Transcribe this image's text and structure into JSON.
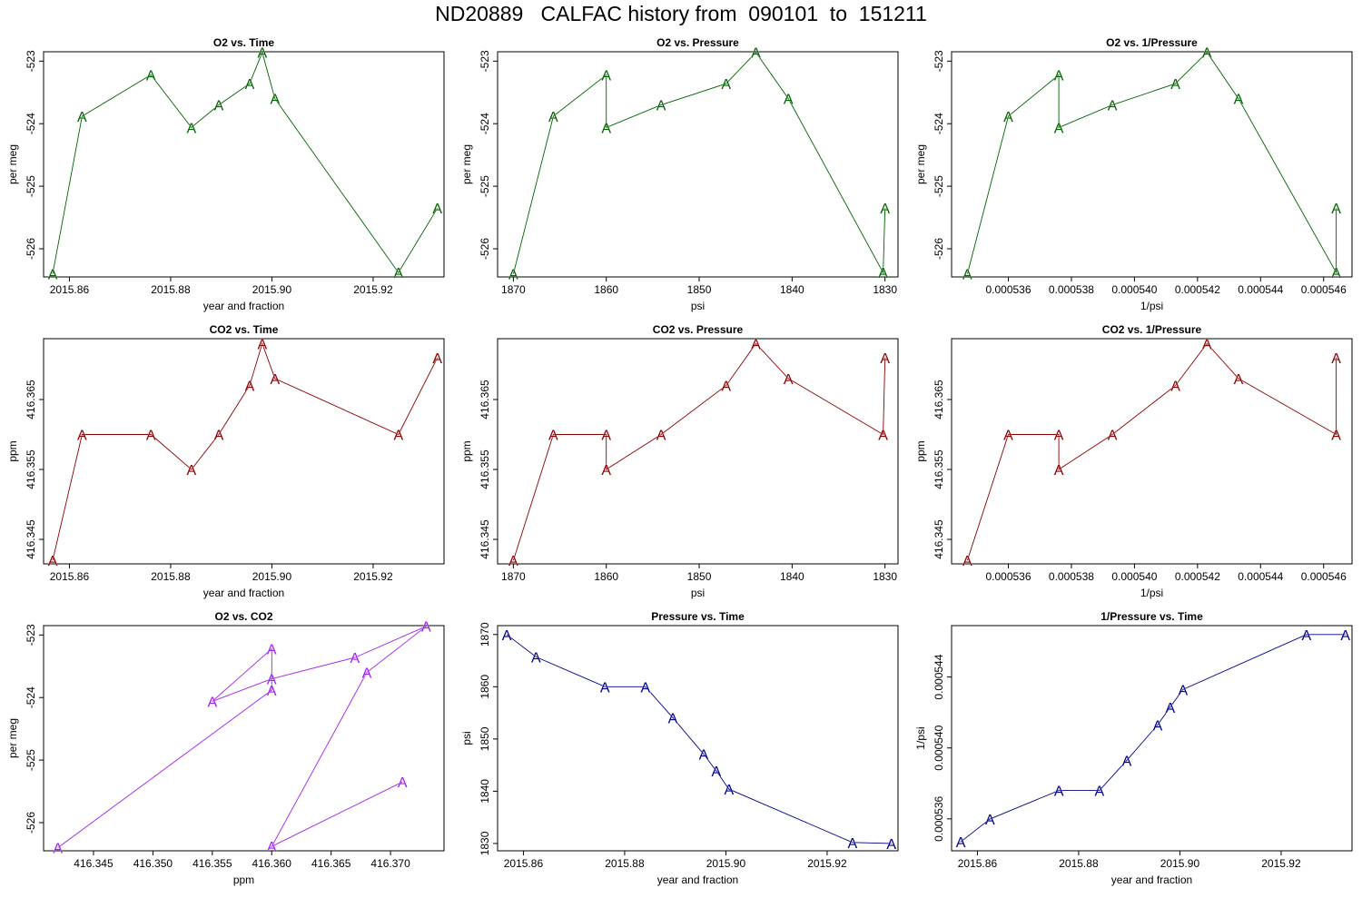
{
  "page": {
    "title": "ND20889   CALFAC history from  090101  to  151211"
  },
  "chart_data": [
    {
      "type": "line",
      "title": "O2 vs. Time",
      "xlabel": "year and fraction",
      "ylabel": "per meg",
      "marker": "A",
      "color": "#006400",
      "xlim": [
        2015.8549,
        2015.934
      ],
      "ylim": [
        -526.45,
        -522.85
      ],
      "xticks": [
        2015.86,
        2015.88,
        2015.9,
        2015.92
      ],
      "xtick_labels": [
        "2015.86",
        "2015.88",
        "2015.90",
        "2015.92"
      ],
      "yticks": [
        -523,
        -524,
        -525,
        -526
      ],
      "ytick_labels": [
        "-523",
        "-524",
        "-525",
        "-526"
      ],
      "x": [
        2015.8567,
        2015.8625,
        2015.8761,
        2015.8841,
        2015.8895,
        2015.8956,
        2015.8981,
        2015.9006,
        2015.925,
        2015.9327
      ],
      "y": [
        -526.4,
        -523.88,
        -523.22,
        -524.06,
        -523.7,
        -523.36,
        -522.86,
        -523.6,
        -526.38,
        -525.35
      ]
    },
    {
      "type": "line",
      "title": "O2 vs. Pressure",
      "xlabel": "psi",
      "ylabel": "per meg",
      "marker": "A",
      "color": "#006400",
      "xlim": [
        1871.7,
        1828.6
      ],
      "ylim": [
        -526.45,
        -522.85
      ],
      "xticks": [
        1870,
        1860,
        1850,
        1840,
        1830
      ],
      "xtick_labels": [
        "1870",
        "1860",
        "1850",
        "1840",
        "1830"
      ],
      "yticks": [
        -523,
        -524,
        -525,
        -526
      ],
      "ytick_labels": [
        "-523",
        "-524",
        "-525",
        "-526"
      ],
      "x": [
        1870.0,
        1865.7,
        1860.0,
        1860.0,
        1854.1,
        1847.1,
        1843.9,
        1840.4,
        1830.2,
        1830.0
      ],
      "y": [
        -526.4,
        -523.88,
        -523.22,
        -524.06,
        -523.7,
        -523.36,
        -522.86,
        -523.6,
        -526.38,
        -525.35
      ]
    },
    {
      "type": "line",
      "title": "O2 vs. 1/Pressure",
      "xlabel": "1/psi",
      "ylabel": "per meg",
      "marker": "A",
      "color": "#006400",
      "xlim": [
        0.0005342,
        0.0005469
      ],
      "ylim": [
        -526.45,
        -522.85
      ],
      "xticks": [
        0.000536,
        0.000538,
        0.00054,
        0.000542,
        0.000544,
        0.000546
      ],
      "xtick_labels": [
        "0.000536",
        "0.000538",
        "0.000540",
        "0.000542",
        "0.000544",
        "0.000546"
      ],
      "yticks": [
        -523,
        -524,
        -525,
        -526
      ],
      "ytick_labels": [
        "-523",
        "-524",
        "-525",
        "-526"
      ],
      "x": [
        0.0005347,
        0.000536,
        0.0005376,
        0.0005376,
        0.0005393,
        0.0005413,
        0.0005423,
        0.0005433,
        0.0005464,
        0.0005464
      ],
      "y": [
        -526.4,
        -523.88,
        -523.22,
        -524.06,
        -523.7,
        -523.36,
        -522.86,
        -523.6,
        -526.38,
        -525.35
      ]
    },
    {
      "type": "line",
      "title": "CO2 vs. Time",
      "xlabel": "year and fraction",
      "ylabel": "ppm",
      "marker": "A",
      "color": "#8b0000",
      "xlim": [
        2015.8549,
        2015.934
      ],
      "ylim": [
        416.3415,
        416.3737
      ],
      "xticks": [
        2015.86,
        2015.88,
        2015.9,
        2015.92
      ],
      "xtick_labels": [
        "2015.86",
        "2015.88",
        "2015.90",
        "2015.92"
      ],
      "yticks": [
        416.345,
        416.355,
        416.365
      ],
      "ytick_labels": [
        "416.345",
        "416.355",
        "416.365"
      ],
      "x": [
        2015.8567,
        2015.8625,
        2015.8761,
        2015.8841,
        2015.8895,
        2015.8956,
        2015.8981,
        2015.9006,
        2015.925,
        2015.9327
      ],
      "y": [
        416.342,
        416.36,
        416.36,
        416.355,
        416.36,
        416.367,
        416.373,
        416.368,
        416.36,
        416.371
      ]
    },
    {
      "type": "line",
      "title": "CO2 vs. Pressure",
      "xlabel": "psi",
      "ylabel": "ppm",
      "marker": "A",
      "color": "#8b0000",
      "xlim": [
        1871.7,
        1828.6
      ],
      "ylim": [
        416.3415,
        416.3737
      ],
      "xticks": [
        1870,
        1860,
        1850,
        1840,
        1830
      ],
      "xtick_labels": [
        "1870",
        "1860",
        "1850",
        "1840",
        "1830"
      ],
      "yticks": [
        416.345,
        416.355,
        416.365
      ],
      "ytick_labels": [
        "416.345",
        "416.355",
        "416.365"
      ],
      "x": [
        1870.0,
        1865.7,
        1860.0,
        1860.0,
        1854.1,
        1847.1,
        1843.9,
        1840.4,
        1830.2,
        1830.0
      ],
      "y": [
        416.342,
        416.36,
        416.36,
        416.355,
        416.36,
        416.367,
        416.373,
        416.368,
        416.36,
        416.371
      ]
    },
    {
      "type": "line",
      "title": "CO2 vs. 1/Pressure",
      "xlabel": "1/psi",
      "ylabel": "ppm",
      "marker": "A",
      "color": "#8b0000",
      "xlim": [
        0.0005342,
        0.0005469
      ],
      "ylim": [
        416.3415,
        416.3737
      ],
      "xticks": [
        0.000536,
        0.000538,
        0.00054,
        0.000542,
        0.000544,
        0.000546
      ],
      "xtick_labels": [
        "0.000536",
        "0.000538",
        "0.000540",
        "0.000542",
        "0.000544",
        "0.000546"
      ],
      "yticks": [
        416.345,
        416.355,
        416.365
      ],
      "ytick_labels": [
        "416.345",
        "416.355",
        "416.365"
      ],
      "x": [
        0.0005347,
        0.000536,
        0.0005376,
        0.0005376,
        0.0005393,
        0.0005413,
        0.0005423,
        0.0005433,
        0.0005464,
        0.0005464
      ],
      "y": [
        416.342,
        416.36,
        416.36,
        416.355,
        416.36,
        416.367,
        416.373,
        416.368,
        416.36,
        416.371
      ]
    },
    {
      "type": "line",
      "title": "O2 vs. CO2",
      "xlabel": "ppm",
      "ylabel": "per meg",
      "marker": "A",
      "color": "#a020f0",
      "xlim": [
        416.3408,
        416.3745
      ],
      "ylim": [
        -526.45,
        -522.85
      ],
      "xticks": [
        416.345,
        416.35,
        416.355,
        416.36,
        416.365,
        416.37
      ],
      "xtick_labels": [
        "416.345",
        "416.350",
        "416.355",
        "416.360",
        "416.365",
        "416.370"
      ],
      "yticks": [
        -523,
        -524,
        -525,
        -526
      ],
      "ytick_labels": [
        "-523",
        "-524",
        "-525",
        "-526"
      ],
      "x": [
        416.342,
        416.36,
        416.36,
        416.355,
        416.36,
        416.367,
        416.373,
        416.368,
        416.36,
        416.371
      ],
      "y": [
        -526.4,
        -523.88,
        -523.22,
        -524.06,
        -523.7,
        -523.36,
        -522.86,
        -523.6,
        -526.38,
        -525.35
      ]
    },
    {
      "type": "line",
      "title": "Pressure vs. Time",
      "xlabel": "year and fraction",
      "ylabel": "psi",
      "marker": "A",
      "color": "#00008b",
      "xlim": [
        2015.8549,
        2015.934
      ],
      "ylim": [
        1828.6,
        1871.7
      ],
      "xticks": [
        2015.86,
        2015.88,
        2015.9,
        2015.92
      ],
      "xtick_labels": [
        "2015.86",
        "2015.88",
        "2015.90",
        "2015.92"
      ],
      "yticks": [
        1830,
        1840,
        1850,
        1860,
        1870
      ],
      "ytick_labels": [
        "1830",
        "1840",
        "1850",
        "1860",
        "1870"
      ],
      "x": [
        2015.8567,
        2015.8625,
        2015.8761,
        2015.8841,
        2015.8895,
        2015.8956,
        2015.8981,
        2015.9006,
        2015.925,
        2015.9327
      ],
      "y": [
        1870.0,
        1865.7,
        1860.0,
        1860.0,
        1854.1,
        1847.1,
        1843.9,
        1840.4,
        1830.2,
        1830.0
      ]
    },
    {
      "type": "line",
      "title": "1/Pressure vs. Time",
      "xlabel": "year and fraction",
      "ylabel": "1/psi",
      "marker": "A",
      "color": "#00008b",
      "xlim": [
        2015.8549,
        2015.934
      ],
      "ylim": [
        0.0005342,
        0.0005469
      ],
      "xticks": [
        2015.86,
        2015.88,
        2015.9,
        2015.92
      ],
      "xtick_labels": [
        "2015.86",
        "2015.88",
        "2015.90",
        "2015.92"
      ],
      "yticks": [
        0.000536,
        0.00054,
        0.000544
      ],
      "ytick_labels": [
        "0.000536",
        "0.000540",
        "0.000544"
      ],
      "x": [
        2015.8567,
        2015.8625,
        2015.8761,
        2015.8841,
        2015.8895,
        2015.8956,
        2015.8981,
        2015.9006,
        2015.925,
        2015.9327
      ],
      "y": [
        0.0005347,
        0.000536,
        0.0005376,
        0.0005376,
        0.0005393,
        0.0005413,
        0.0005423,
        0.0005433,
        0.0005464,
        0.0005464
      ]
    }
  ]
}
